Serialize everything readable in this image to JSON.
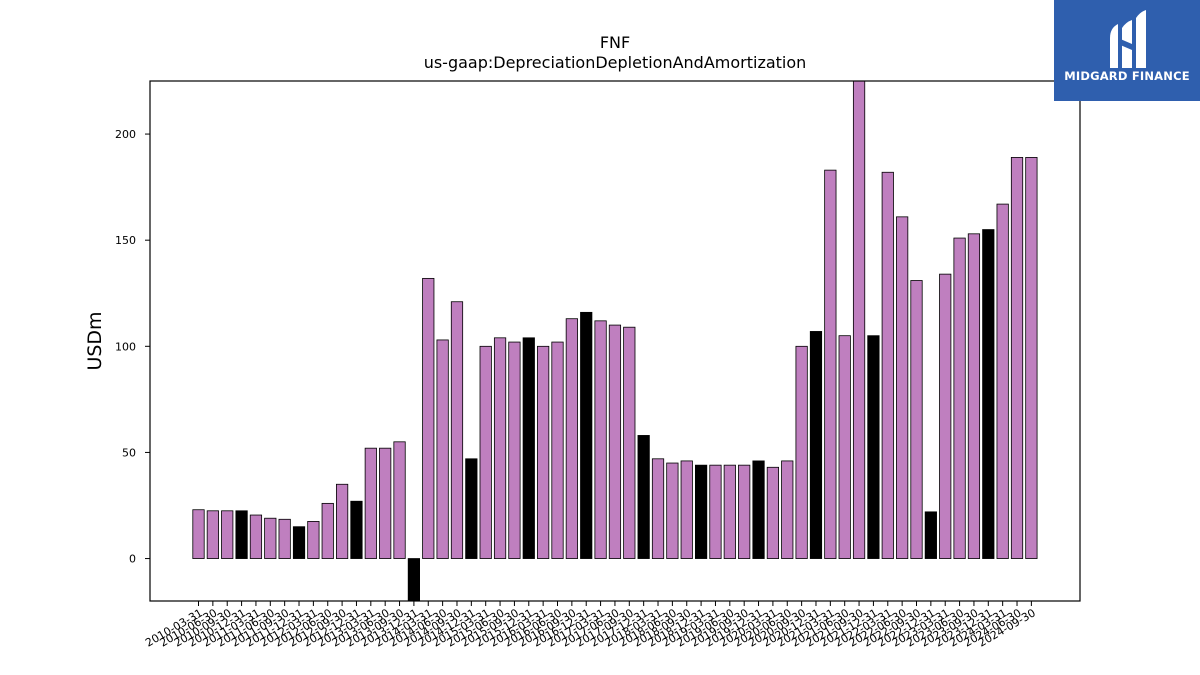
{
  "chart_data": {
    "type": "bar",
    "title": "FNF",
    "subtitle": "us-gaap:DepreciationDepletionAndAmortization",
    "xlabel": "",
    "ylabel": "USDm",
    "ylim": [
      -20,
      225
    ],
    "yticks": [
      0,
      50,
      100,
      150,
      200
    ],
    "colors": {
      "normal": "#bf7fbf",
      "q4": "#000000",
      "edge": "#000000"
    },
    "categories": [
      "2010-03-31",
      "2010-06-30",
      "2010-09-30",
      "2010-12-31",
      "2011-03-31",
      "2011-06-30",
      "2011-09-30",
      "2011-12-31",
      "2012-03-31",
      "2012-06-30",
      "2012-09-30",
      "2012-12-31",
      "2013-03-31",
      "2013-06-30",
      "2013-09-30",
      "2013-12-31",
      "2014-03-31",
      "2014-06-30",
      "2014-09-30",
      "2014-12-31",
      "2015-03-31",
      "2015-06-30",
      "2015-09-30",
      "2015-12-31",
      "2016-03-31",
      "2016-06-30",
      "2016-09-30",
      "2016-12-31",
      "2017-03-31",
      "2017-06-30",
      "2017-09-30",
      "2017-12-31",
      "2018-03-31",
      "2018-06-30",
      "2018-09-30",
      "2018-12-31",
      "2019-03-31",
      "2019-06-30",
      "2019-09-30",
      "2019-12-31",
      "2020-03-31",
      "2020-06-30",
      "2020-09-30",
      "2020-12-31",
      "2021-03-31",
      "2021-06-30",
      "2021-09-30",
      "2021-12-31",
      "2022-03-31",
      "2022-06-30",
      "2022-09-30",
      "2022-12-31",
      "2023-03-31",
      "2023-06-30",
      "2023-09-30",
      "2023-12-31",
      "2024-03-31",
      "2024-06-30",
      "2024-09-30"
    ],
    "values": [
      23,
      22.5,
      22.5,
      22.5,
      20.5,
      19,
      18.5,
      15,
      17.5,
      26,
      35,
      27,
      52,
      52,
      55,
      -20,
      132,
      103,
      121,
      47,
      100,
      104,
      102,
      104,
      100,
      102,
      113,
      116,
      112,
      110,
      109,
      58,
      47,
      45,
      46,
      44,
      44,
      44,
      44,
      46,
      43,
      46,
      100,
      107,
      183,
      105,
      225,
      105,
      182,
      161,
      131,
      22,
      134,
      151,
      153,
      155,
      167,
      189,
      189
    ]
  },
  "logo": {
    "text": "MIDGARD FINANCE",
    "background": "#2f5fae"
  }
}
